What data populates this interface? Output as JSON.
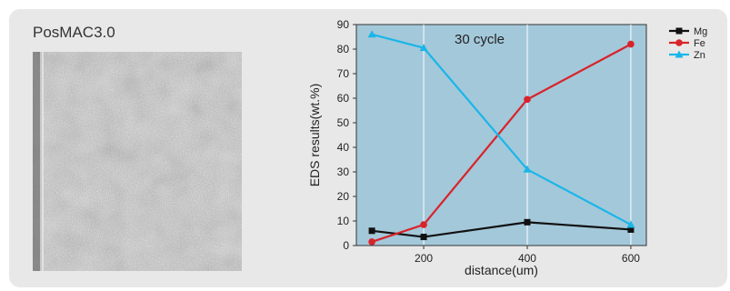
{
  "figure": {
    "label": "PosMAC3.0"
  },
  "chart_data": {
    "type": "line",
    "annotation": "30 cycle",
    "xlabel": "distance(um)",
    "ylabel": "EDS results(wt.%)",
    "xlim": [
      70,
      630
    ],
    "ylim": [
      0,
      90
    ],
    "xticks": [
      200,
      400,
      600
    ],
    "yticks": [
      0,
      10,
      20,
      30,
      40,
      50,
      60,
      70,
      80,
      90
    ],
    "grid": true,
    "background_color": "#a3c8da",
    "legend_position": "top-right",
    "series": [
      {
        "name": "Mg",
        "color": "#111111",
        "marker": "square",
        "x": [
          100,
          200,
          400,
          600
        ],
        "y": [
          6.0,
          3.5,
          9.5,
          6.5
        ]
      },
      {
        "name": "Fe",
        "color": "#d9232b",
        "marker": "circle",
        "x": [
          100,
          200,
          400,
          600
        ],
        "y": [
          1.5,
          8.5,
          59.5,
          82
        ]
      },
      {
        "name": "Zn",
        "color": "#1ab6e8",
        "marker": "triangle",
        "x": [
          100,
          200,
          400,
          600
        ],
        "y": [
          86,
          80.5,
          31,
          8.5
        ]
      }
    ]
  }
}
